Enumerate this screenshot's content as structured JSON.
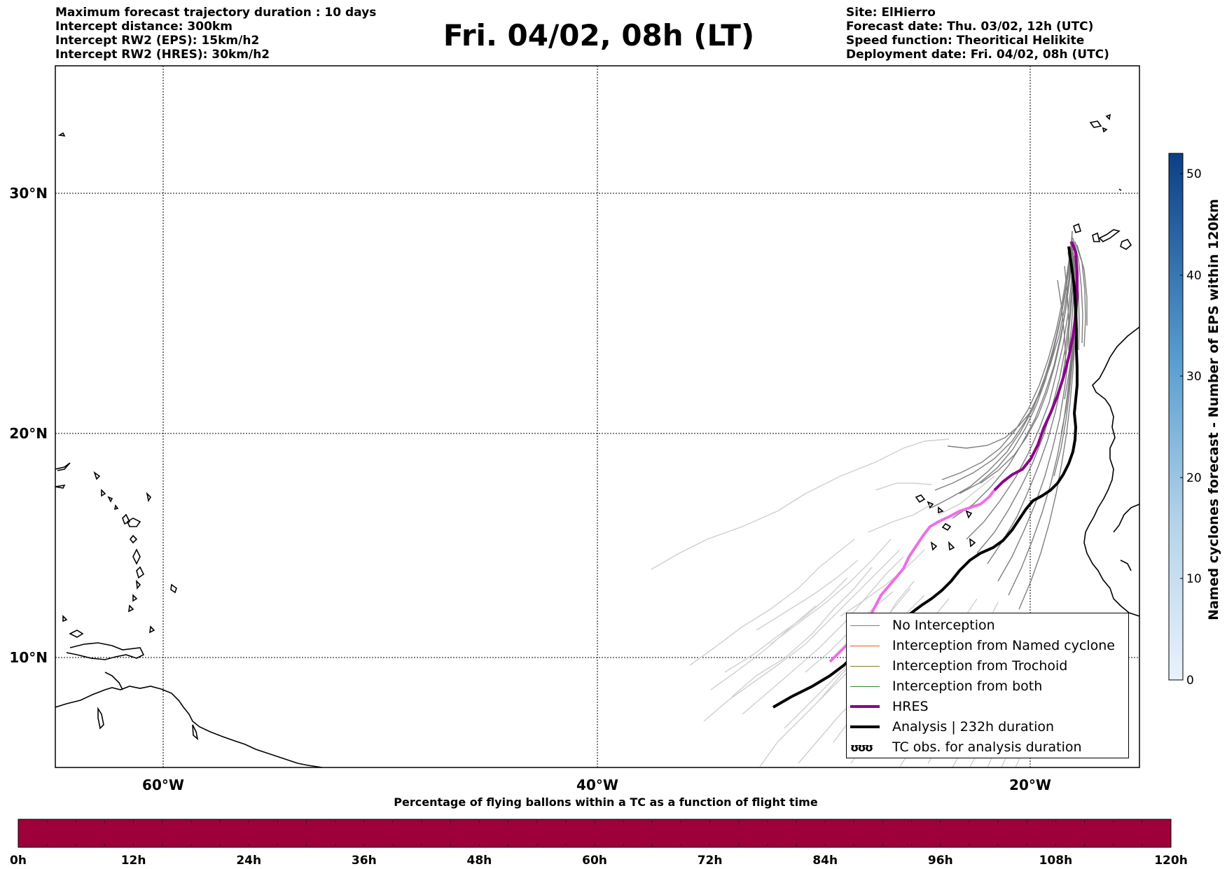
{
  "header": {
    "title": "Fri. 04/02, 08h (LT)",
    "left_lines": [
      "Maximum forecast trajectory duration : 10 days",
      "Intercept distance: 300km",
      "Intercept RW2 (EPS):  15km/h2",
      "Intercept RW2 (HRES): 30km/h2"
    ],
    "right_lines": [
      "Site: ElHierro",
      "Forecast date: Thu. 03/02, 12h (UTC)",
      "Speed function: Theoritical Helikite",
      "Deployment date: Fri. 04/02, 08h (UTC)"
    ]
  },
  "map": {
    "lon_range": [
      -65,
      -15
    ],
    "lat_range": [
      5.4,
      34.7
    ],
    "lat_ticks": [
      "30°N",
      "20°N",
      "10°N"
    ],
    "lon_ticks": [
      "60°W",
      "40°W",
      "20°W"
    ],
    "launch_site": "ElHierro",
    "colors": {
      "no_interception": "#7f7f7f",
      "late_trajectories": "#cfcfcf",
      "named_cyclone": "#e8561d",
      "trochoid": "#808020",
      "both": "#2e8b2e",
      "hres": "#8b008b",
      "hres_late": "#ee6ee6",
      "analysis": "#000000"
    }
  },
  "legend": {
    "items": [
      {
        "label": "No Interception",
        "color": "#7f7f7f",
        "style": "thin"
      },
      {
        "label": "Interception from Named cyclone",
        "color": "#e8561d",
        "style": "thin"
      },
      {
        "label": "Interception from Trochoid",
        "color": "#808020",
        "style": "thin"
      },
      {
        "label": "Interception from both",
        "color": "#2e8b2e",
        "style": "thin"
      },
      {
        "label": "HRES",
        "color": "#8b008b",
        "style": "thick"
      },
      {
        "label": "Analysis | 232h duration",
        "color": "#000000",
        "style": "thick"
      },
      {
        "label": "TC obs. for analysis duration",
        "color": "#000000",
        "style": "glyph",
        "glyph": "ʊʊʊ"
      }
    ]
  },
  "colorbar_right": {
    "label": "Named cyclones forecast - Number of EPS within 120km",
    "ticks": [
      "0",
      "10",
      "20",
      "30",
      "40",
      "50"
    ],
    "range": [
      0,
      52
    ]
  },
  "colorbar_bottom": {
    "title": "Percentage of flying ballons within a TC as a function of flight time",
    "ticks": [
      "0h",
      "12h",
      "24h",
      "36h",
      "48h",
      "60h",
      "72h",
      "84h",
      "96h",
      "108h",
      "120h"
    ],
    "fill_color": "#9e003a"
  }
}
